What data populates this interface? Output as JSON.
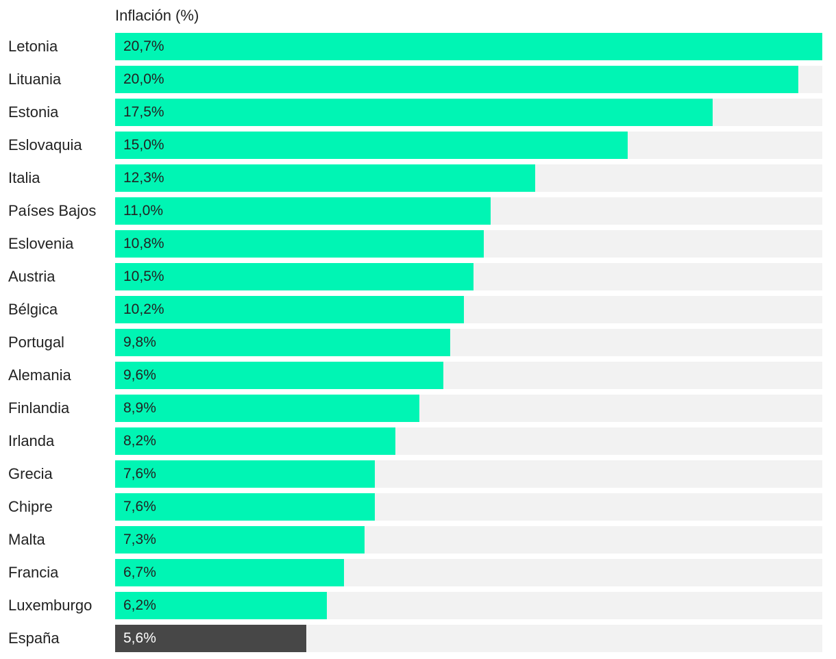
{
  "chart_data": {
    "type": "bar",
    "orientation": "horizontal",
    "title": "Inflación (%)",
    "categories": [
      "Letonia",
      "Lituania",
      "Estonia",
      "Eslovaquia",
      "Italia",
      "Países Bajos",
      "Eslovenia",
      "Austria",
      "Bélgica",
      "Portugal",
      "Alemania",
      "Finlandia",
      "Irlanda",
      "Grecia",
      "Chipre",
      "Malta",
      "Francia",
      "Luxemburgo",
      "España"
    ],
    "values": [
      20.7,
      20.0,
      17.5,
      15.0,
      12.3,
      11.0,
      10.8,
      10.5,
      10.2,
      9.8,
      9.6,
      8.9,
      8.2,
      7.6,
      7.6,
      7.3,
      6.7,
      6.2,
      5.6
    ],
    "value_labels": [
      "20,7%",
      "20,0%",
      "17,5%",
      "15,0%",
      "12,3%",
      "11,0%",
      "10,8%",
      "10,5%",
      "10,2%",
      "9,8%",
      "9,6%",
      "8,9%",
      "8,2%",
      "7,6%",
      "7,6%",
      "7,3%",
      "6,7%",
      "6,2%",
      "5,6%"
    ],
    "xlim": [
      0,
      20.7
    ],
    "grid": false,
    "legend": "none",
    "highlight_category": "España",
    "colors": {
      "bar": "#00f5b4",
      "highlight": "#474747",
      "track": "#f2f2f2",
      "text": "#222222",
      "highlight_text": "#ffffff"
    }
  }
}
